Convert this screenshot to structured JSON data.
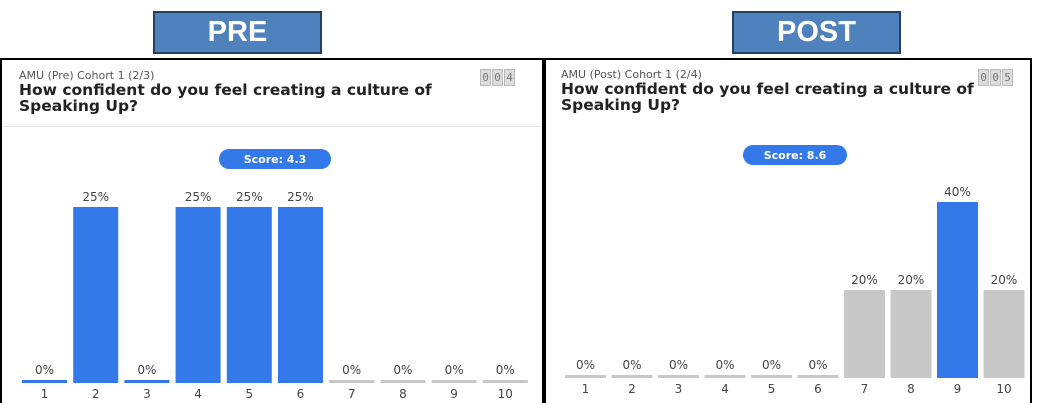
{
  "colors": {
    "tag_fill": "#4f81bd",
    "bar_blue": "#3479ea",
    "bar_grey": "#c8c8c8",
    "score_pill": "#3479ea"
  },
  "tags": {
    "pre": "PRE",
    "post": "POST"
  },
  "panels": [
    {
      "subtitle": "AMU (Pre) Cohort 1 (2/3)",
      "question": "How confident do you feel creating a culture of Speaking Up?",
      "counter": [
        "0",
        "0",
        "4"
      ],
      "score": "Score: 4.3"
    },
    {
      "subtitle": "AMU (Post) Cohort 1 (2/4)",
      "question": "How confident do you feel creating a culture of Speaking Up?",
      "counter": [
        "0",
        "0",
        "5"
      ],
      "score": "Score: 8.6"
    }
  ],
  "chart_data": [
    {
      "type": "bar",
      "title": "How confident do you feel creating a culture of Speaking Up?",
      "categories": [
        "1",
        "2",
        "3",
        "4",
        "5",
        "6",
        "7",
        "8",
        "9",
        "10"
      ],
      "values": [
        0,
        25,
        0,
        25,
        25,
        25,
        0,
        0,
        0,
        0
      ],
      "labels": [
        "0%",
        "25%",
        "0%",
        "25%",
        "25%",
        "25%",
        "0%",
        "0%",
        "0%",
        "0%"
      ],
      "bar_colors": [
        "blue",
        "blue",
        "blue",
        "blue",
        "blue",
        "blue",
        "grey",
        "grey",
        "grey",
        "grey"
      ],
      "ylim": [
        0,
        25
      ],
      "xlabel": "",
      "ylabel": "",
      "grid": false
    },
    {
      "type": "bar",
      "title": "How confident do you feel creating a culture of Speaking Up?",
      "categories": [
        "1",
        "2",
        "3",
        "4",
        "5",
        "6",
        "7",
        "8",
        "9",
        "10"
      ],
      "values": [
        0,
        0,
        0,
        0,
        0,
        0,
        20,
        20,
        40,
        20
      ],
      "labels": [
        "0%",
        "0%",
        "0%",
        "0%",
        "0%",
        "0%",
        "20%",
        "20%",
        "40%",
        "20%"
      ],
      "bar_colors": [
        "grey",
        "grey",
        "grey",
        "grey",
        "grey",
        "grey",
        "grey",
        "grey",
        "blue",
        "grey"
      ],
      "ylim": [
        0,
        40
      ],
      "xlabel": "",
      "ylabel": "",
      "grid": false
    }
  ]
}
